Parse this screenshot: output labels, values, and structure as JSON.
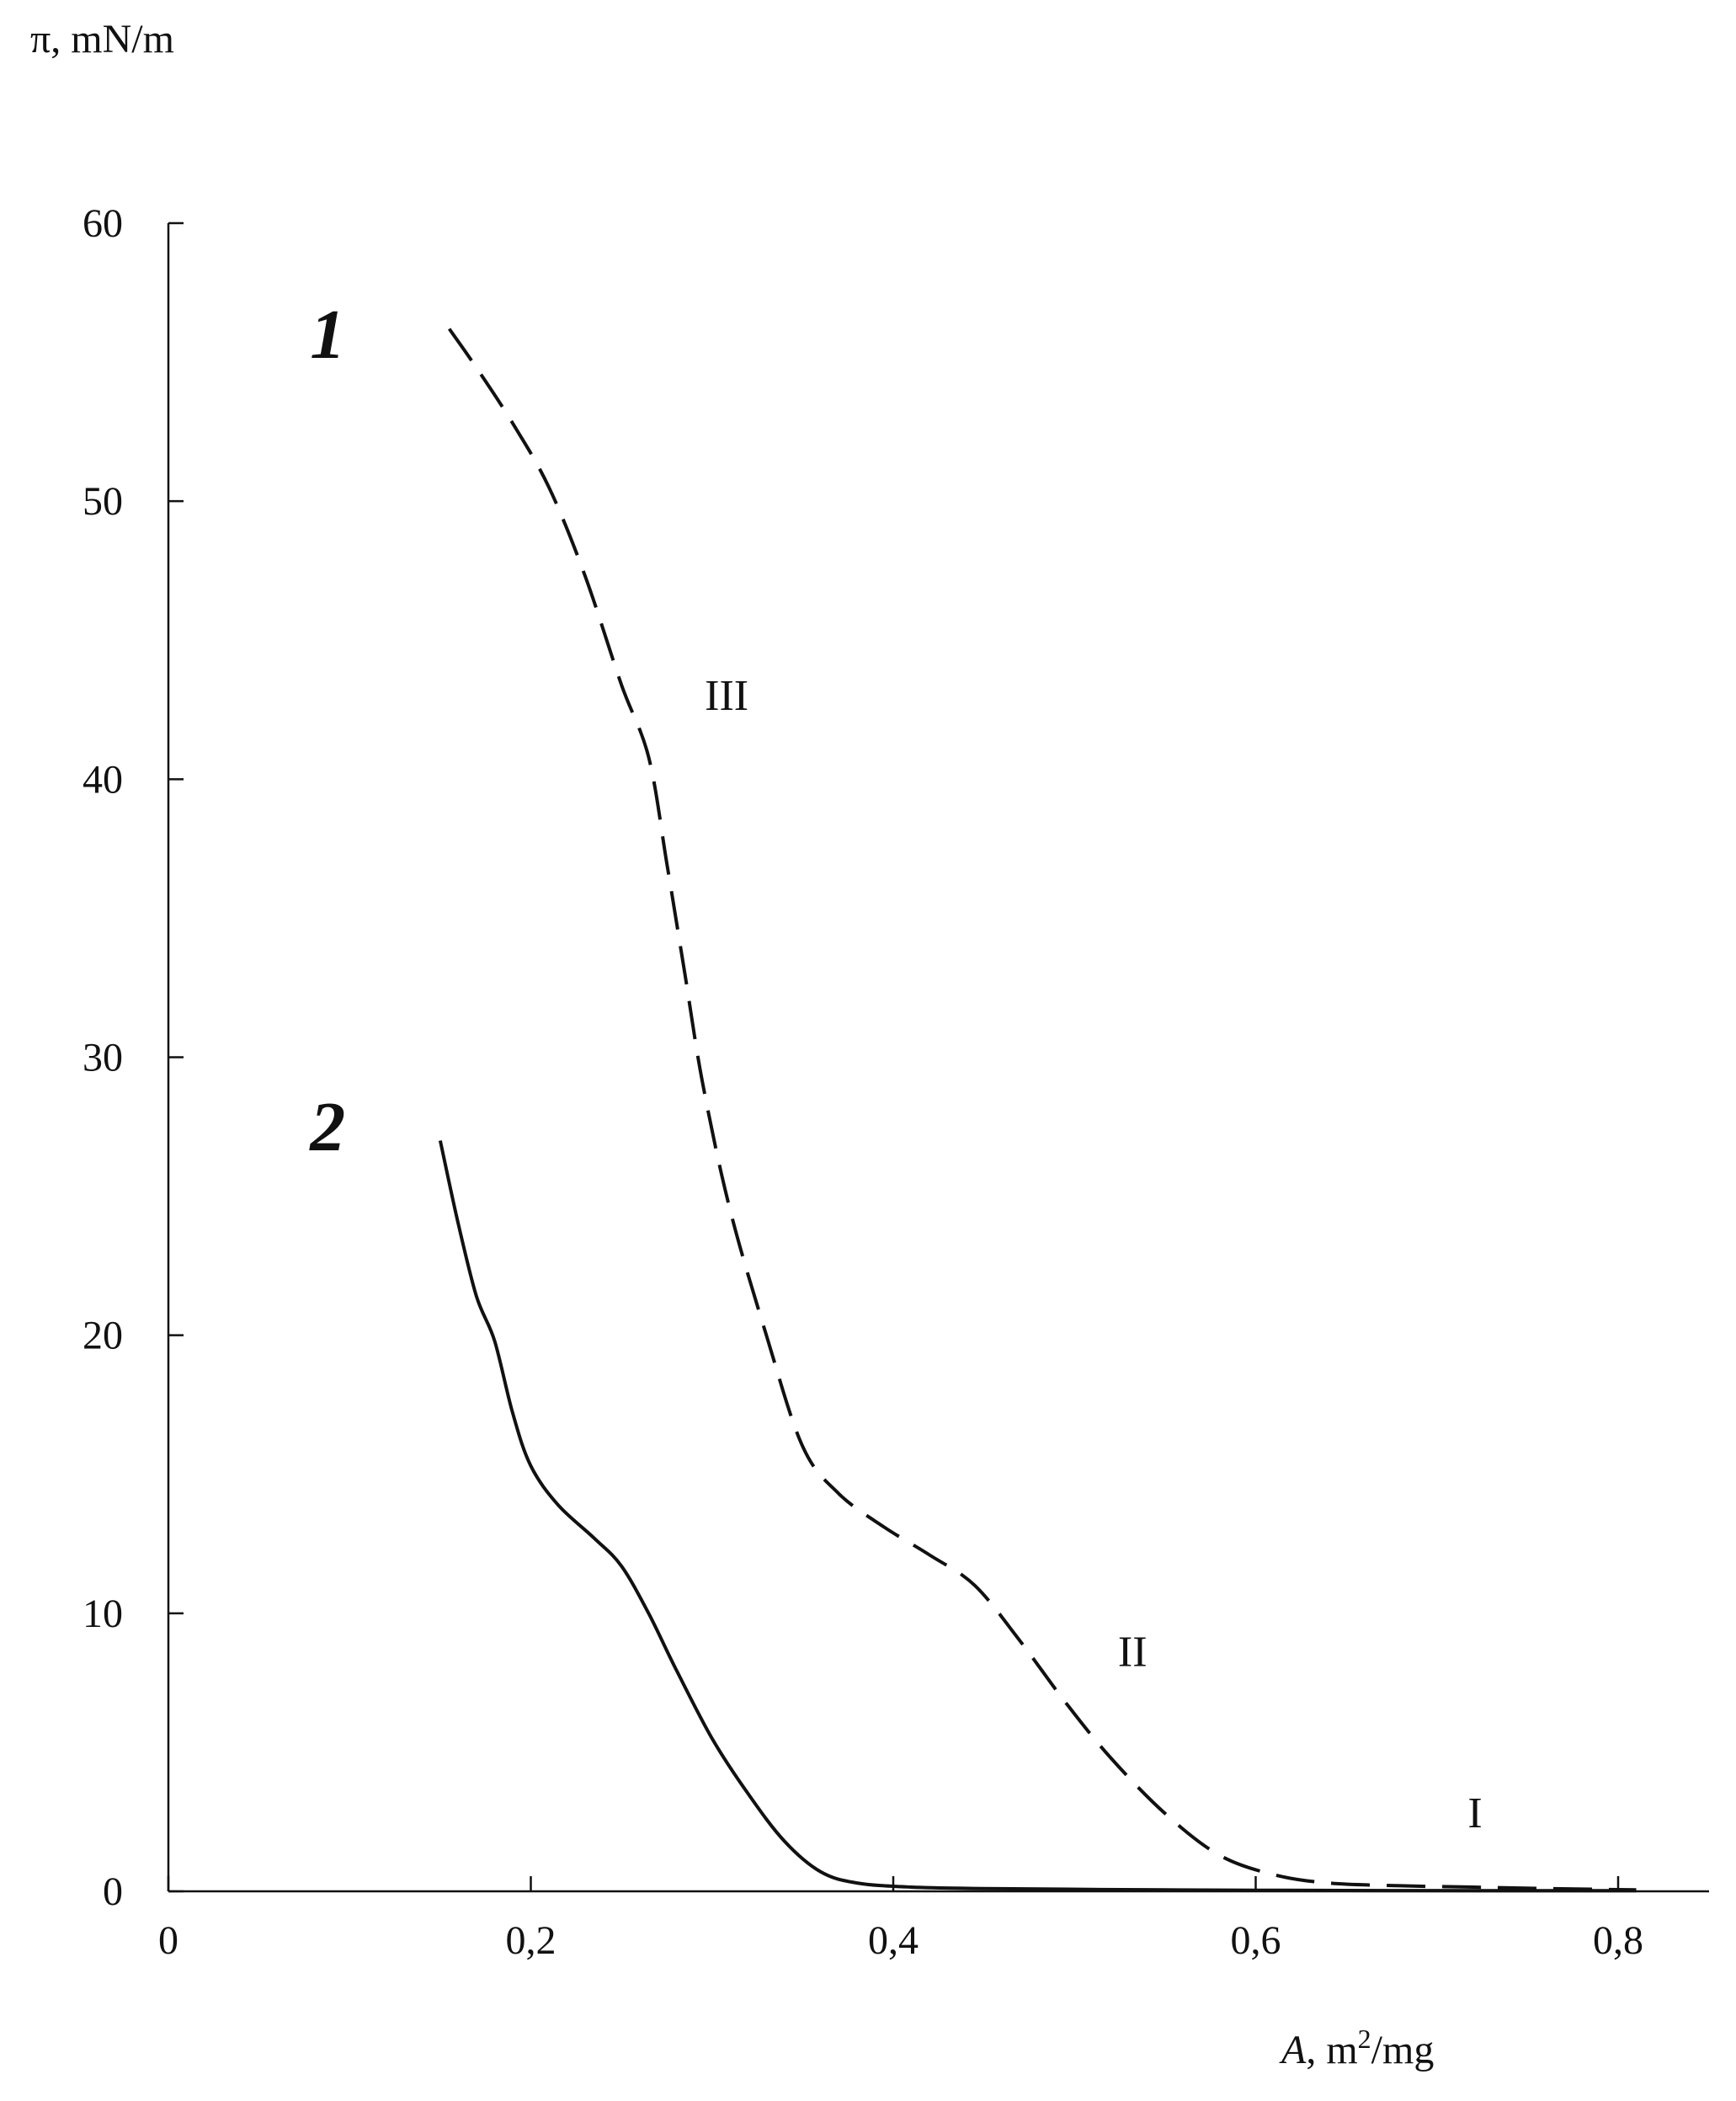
{
  "chart_data": {
    "type": "line",
    "ylabel": "π, mN/m",
    "xlabel_italic": "A",
    "xlabel_rest": ", m",
    "xlabel_sup": "2",
    "xlabel_tail": "/mg",
    "xlim": [
      0,
      0.85
    ],
    "ylim": [
      0,
      60
    ],
    "x_ticks": [
      {
        "value": 0,
        "label": "0"
      },
      {
        "value": 0.2,
        "label": "0,2"
      },
      {
        "value": 0.4,
        "label": "0,4"
      },
      {
        "value": 0.6,
        "label": "0,6"
      },
      {
        "value": 0.8,
        "label": "0,8"
      }
    ],
    "y_ticks": [
      {
        "value": 0,
        "label": "0"
      },
      {
        "value": 10,
        "label": "10"
      },
      {
        "value": 20,
        "label": "20"
      },
      {
        "value": 30,
        "label": "30"
      },
      {
        "value": 40,
        "label": "40"
      },
      {
        "value": 50,
        "label": "50"
      },
      {
        "value": 60,
        "label": "60"
      }
    ],
    "series": [
      {
        "label": "1",
        "style": "dashed",
        "points": [
          [
            0.155,
            56.2
          ],
          [
            0.17,
            54.8
          ],
          [
            0.19,
            52.8
          ],
          [
            0.21,
            50.5
          ],
          [
            0.23,
            47.3
          ],
          [
            0.25,
            43.4
          ],
          [
            0.265,
            40.8
          ],
          [
            0.275,
            37.0
          ],
          [
            0.285,
            33.0
          ],
          [
            0.295,
            29.0
          ],
          [
            0.31,
            24.5
          ],
          [
            0.33,
            20.0
          ],
          [
            0.35,
            16.0
          ],
          [
            0.37,
            14.3
          ],
          [
            0.395,
            13.1
          ],
          [
            0.42,
            12.1
          ],
          [
            0.445,
            11.0
          ],
          [
            0.47,
            9.0
          ],
          [
            0.495,
            6.8
          ],
          [
            0.52,
            4.8
          ],
          [
            0.55,
            2.8
          ],
          [
            0.58,
            1.3
          ],
          [
            0.61,
            0.6
          ],
          [
            0.64,
            0.3
          ],
          [
            0.68,
            0.2
          ],
          [
            0.72,
            0.15
          ],
          [
            0.76,
            0.1
          ],
          [
            0.81,
            0.05
          ]
        ]
      },
      {
        "label": "2",
        "style": "solid",
        "points": [
          [
            0.15,
            27.0
          ],
          [
            0.16,
            24.0
          ],
          [
            0.17,
            21.4
          ],
          [
            0.18,
            19.8
          ],
          [
            0.19,
            17.2
          ],
          [
            0.2,
            15.3
          ],
          [
            0.215,
            13.9
          ],
          [
            0.235,
            12.7
          ],
          [
            0.25,
            11.7
          ],
          [
            0.265,
            10.0
          ],
          [
            0.28,
            8.0
          ],
          [
            0.3,
            5.5
          ],
          [
            0.32,
            3.5
          ],
          [
            0.34,
            1.8
          ],
          [
            0.36,
            0.7
          ],
          [
            0.38,
            0.3
          ],
          [
            0.41,
            0.15
          ],
          [
            0.45,
            0.1
          ],
          [
            0.55,
            0.05
          ],
          [
            0.65,
            0.03
          ],
          [
            0.75,
            0.02
          ],
          [
            0.81,
            0.02
          ]
        ]
      }
    ],
    "curve_labels": [
      {
        "text": "1",
        "x": 0.08,
        "y": 56.0,
        "bold": true
      },
      {
        "text": "2",
        "x": 0.08,
        "y": 27.5,
        "bold": true
      }
    ],
    "annotations": [
      {
        "text": "III",
        "x": 0.296,
        "y": 42.5
      },
      {
        "text": "II",
        "x": 0.524,
        "y": 8.1
      },
      {
        "text": "I",
        "x": 0.717,
        "y": 2.3
      }
    ]
  }
}
